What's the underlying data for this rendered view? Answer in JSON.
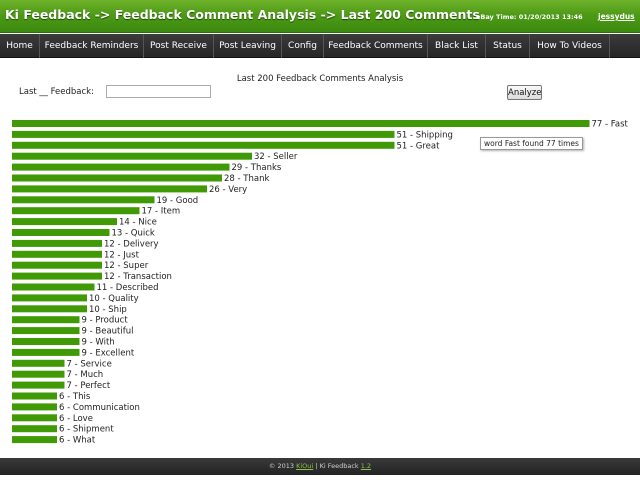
{
  "header": {
    "title": "Ki Feedback -> Feedback Comment Analysis -> Last 200 Comments",
    "ebay_time": "eBay Time: 01/20/2013 13:46",
    "user": "jessydus"
  },
  "nav": {
    "items": [
      {
        "label": "Home"
      },
      {
        "label": "Feedback Reminders"
      },
      {
        "label": "Post Receive"
      },
      {
        "label": "Post Leaving"
      },
      {
        "label": "Config"
      },
      {
        "label": "Feedback Comments"
      },
      {
        "label": "Black List"
      },
      {
        "label": "Status"
      },
      {
        "label": "How To Videos"
      }
    ]
  },
  "main": {
    "title": "Last 200 Feedback Comments Analysis",
    "filter_label": "Last __ Feedback:",
    "filter_value": "",
    "analyze_label": "Analyze",
    "tooltip": "word Fast found 77 times"
  },
  "colors": {
    "bar": "#3f9a06",
    "header": "#4e9a17",
    "nav": "#2b2b2b"
  },
  "chart_data": {
    "type": "bar",
    "orientation": "horizontal",
    "categories": [
      "Fast",
      "Shipping",
      "Great",
      "Seller",
      "Thanks",
      "Thank",
      "Very",
      "Good",
      "Item",
      "Nice",
      "Quick",
      "Delivery",
      "Just",
      "Super",
      "Transaction",
      "Described",
      "Quality",
      "Ship",
      "Product",
      "Beautiful",
      "With",
      "Excellent",
      "Service",
      "Much",
      "Perfect",
      "This",
      "Communication",
      "Love",
      "Shipment",
      "What"
    ],
    "values": [
      77,
      51,
      51,
      32,
      29,
      28,
      26,
      19,
      17,
      14,
      13,
      12,
      12,
      12,
      12,
      11,
      10,
      10,
      9,
      9,
      9,
      9,
      7,
      7,
      7,
      6,
      6,
      6,
      6,
      6
    ],
    "labels": [
      "77 - Fast",
      "51 - Shipping",
      "51 - Great",
      "32 - Seller",
      "29 - Thanks",
      "28 - Thank",
      "26 - Very",
      "19 - Good",
      "17 - Item",
      "14 - Nice",
      "13 - Quick",
      "12 - Delivery",
      "12 - Just",
      "12 - Super",
      "12 - Transaction",
      "11 - Described",
      "10 - Quality",
      "10 - Ship",
      "9 - Product",
      "9 - Beautiful",
      "9 - With",
      "9 - Excellent",
      "7 - Service",
      "7 - Much",
      "7 - Perfect",
      "6 - This",
      "6 - Communication",
      "6 - Love",
      "6 - Shipment",
      "6 - What"
    ],
    "title": "",
    "xlabel": "",
    "ylabel": ""
  },
  "footer": {
    "copyright": "© 2013",
    "company": "KiOui",
    "separator": " | ",
    "product": "Ki Feedback",
    "version": "1.2"
  }
}
